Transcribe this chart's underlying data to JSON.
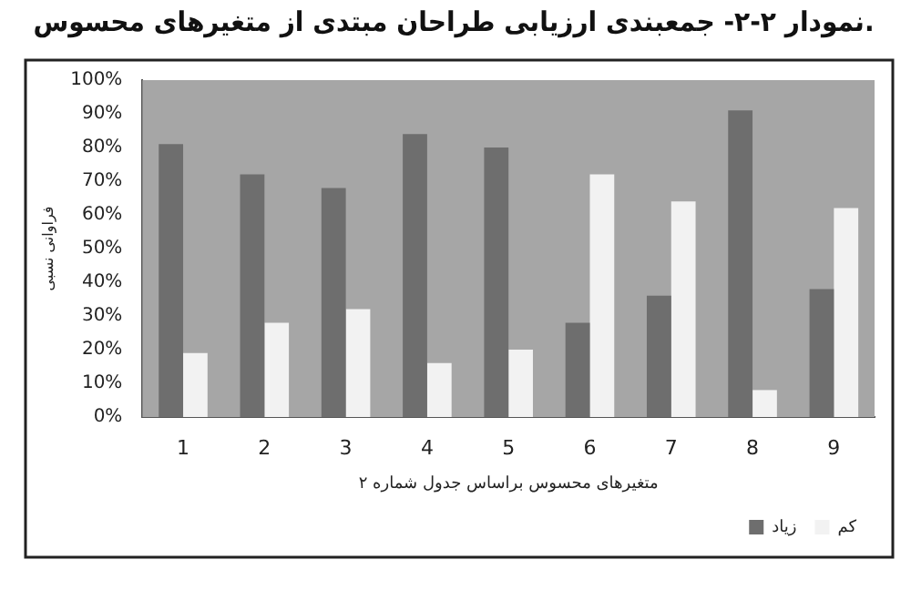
{
  "chart_data": {
    "type": "bar",
    "title": "نمودار ۲-۲- جمعبندی ارزیابی طراحان مبتدی از متغیرهای محسوس.",
    "xlabel": "متغیرهای محسوس براساس جدول شماره ۲",
    "ylabel": "فراوانی نسبی",
    "categories": [
      "1",
      "2",
      "3",
      "4",
      "5",
      "6",
      "7",
      "8",
      "9"
    ],
    "series": [
      {
        "name": "زیاد",
        "color": "#6e6e6e",
        "values": [
          81,
          72,
          68,
          84,
          80,
          28,
          36,
          91,
          38
        ]
      },
      {
        "name": "کم",
        "color": "#f2f2f2",
        "values": [
          19,
          28,
          32,
          16,
          20,
          72,
          64,
          8,
          62
        ]
      }
    ],
    "ylim": [
      0,
      100
    ],
    "yticks": [
      {
        "value": 0,
        "label": "0%"
      },
      {
        "value": 10,
        "label": "10%"
      },
      {
        "value": 20,
        "label": "20%"
      },
      {
        "value": 30,
        "label": "30%"
      },
      {
        "value": 40,
        "label": "40%"
      },
      {
        "value": 50,
        "label": "50%"
      },
      {
        "value": 60,
        "label": "60%"
      },
      {
        "value": 70,
        "label": "70%"
      },
      {
        "value": 80,
        "label": "80%"
      },
      {
        "value": 90,
        "label": "90%"
      },
      {
        "value": 100,
        "label": "100%"
      }
    ],
    "grid": false,
    "legend": "bottom right"
  }
}
